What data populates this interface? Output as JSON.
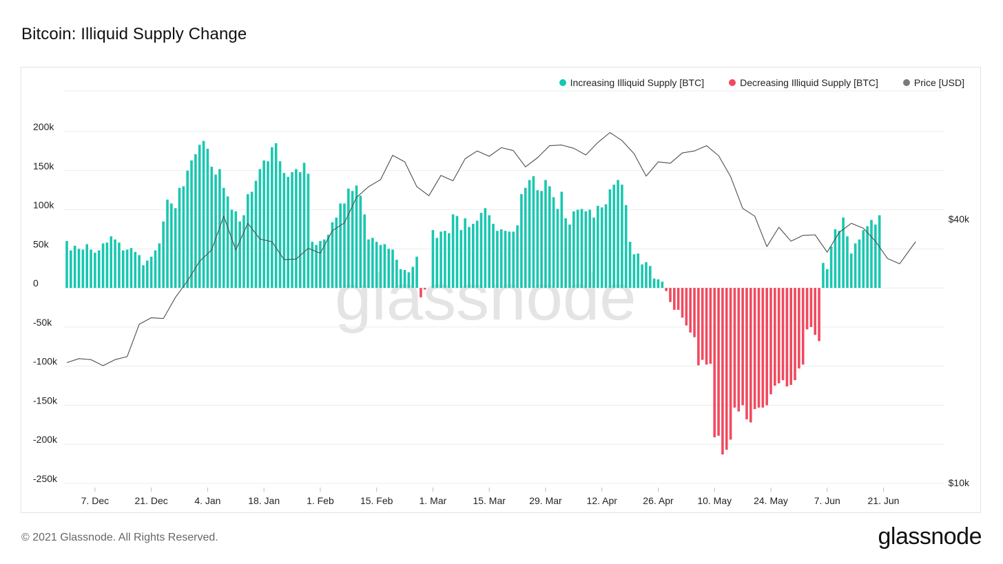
{
  "title": "Bitcoin: Illiquid Supply Change",
  "footer": {
    "copyright": "© 2021 Glassnode. All Rights Reserved.",
    "brand": "glassnode"
  },
  "watermark": "glassnode",
  "colors": {
    "increasing": "#19c7b0",
    "decreasing": "#f04a5f",
    "price": "#4d4d4d",
    "grid": "#ececec"
  },
  "legend": [
    {
      "label": "Increasing Illiquid Supply [BTC]",
      "color": "#19c7b0"
    },
    {
      "label": "Decreasing Illiquid Supply [BTC]",
      "color": "#f04a5f"
    },
    {
      "label": "Price [USD]",
      "color": "#7a7a7a"
    }
  ],
  "chart_data": {
    "type": "bar",
    "title": "Bitcoin: Illiquid Supply Change",
    "y_axis_left": {
      "ticks": [
        "200k",
        "150k",
        "100k",
        "50k",
        "0",
        "-50k",
        "-100k",
        "-150k",
        "-200k",
        "-250k"
      ],
      "range": [
        -250000,
        200000
      ]
    },
    "y_axis_right": {
      "ticks": [
        "$40k",
        "$10k"
      ],
      "scale": "log",
      "range": [
        10000,
        40000
      ]
    },
    "x_axis": {
      "tick_labels": [
        "7. Dec",
        "21. Dec",
        "4. Jan",
        "18. Jan",
        "1. Feb",
        "15. Feb",
        "1. Mar",
        "15. Mar",
        "29. Mar",
        "12. Apr",
        "26. Apr",
        "10. May",
        "24. May",
        "7. Jun",
        "21. Jun"
      ]
    },
    "start_date": "2020-11-30",
    "end_date": "2021-06-29",
    "grid": true,
    "legend_position": "top-right",
    "series": [
      {
        "name": "Illiquid Supply Change [BTC]",
        "values": [
          60000,
          48000,
          54000,
          50000,
          49000,
          56000,
          49000,
          45000,
          48000,
          57000,
          58000,
          66000,
          62000,
          58000,
          48000,
          49000,
          51000,
          46000,
          42000,
          29000,
          35000,
          40000,
          48000,
          57000,
          85000,
          113000,
          108000,
          102000,
          128000,
          130000,
          150000,
          163000,
          171000,
          183000,
          188000,
          178000,
          155000,
          145000,
          152000,
          128000,
          117000,
          100000,
          98000,
          85000,
          93000,
          120000,
          123000,
          137000,
          152000,
          163000,
          162000,
          180000,
          185000,
          162000,
          147000,
          142000,
          148000,
          152000,
          148000,
          160000,
          146000,
          59000,
          55000,
          60000,
          62000,
          68000,
          84000,
          90000,
          108000,
          108000,
          127000,
          124000,
          131000,
          118000,
          94000,
          62000,
          64000,
          59000,
          55000,
          56000,
          50000,
          49000,
          36000,
          24000,
          23000,
          20000,
          27000,
          40000,
          -12000,
          -2000,
          0,
          74000,
          64000,
          72000,
          73000,
          70000,
          94000,
          92000,
          74000,
          89000,
          78000,
          82000,
          86000,
          96000,
          102000,
          93000,
          82000,
          73000,
          75000,
          73000,
          72000,
          72000,
          80000,
          120000,
          128000,
          138000,
          143000,
          125000,
          124000,
          138000,
          130000,
          116000,
          101000,
          123000,
          89000,
          81000,
          98000,
          100000,
          101000,
          98000,
          100000,
          90000,
          105000,
          103000,
          107000,
          126000,
          132000,
          138000,
          132000,
          106000,
          59000,
          43000,
          44000,
          30000,
          33000,
          28000,
          12000,
          11000,
          8000,
          -4000,
          -18000,
          -28000,
          -28000,
          -38000,
          -48000,
          -57000,
          -63000,
          -99000,
          -92000,
          -98000,
          -97000,
          -191000,
          -189000,
          -213000,
          -207000,
          -194000,
          -153000,
          -158000,
          -150000,
          -168000,
          -172000,
          -155000,
          -153000,
          -153000,
          -150000,
          -136000,
          -125000,
          -122000,
          -118000,
          -126000,
          -124000,
          -118000,
          -103000,
          -98000,
          -53000,
          -50000,
          -60000,
          -68000,
          32000,
          24000,
          53000,
          75000,
          73000,
          90000,
          66000,
          44000,
          57000,
          62000,
          74000,
          79000,
          87000,
          81000,
          93000
        ]
      },
      {
        "name": "Price [USD]",
        "x": [
          "2020-11-30",
          "2020-12-03",
          "2020-12-06",
          "2020-12-09",
          "2020-12-12",
          "2020-12-15",
          "2020-12-18",
          "2020-12-21",
          "2020-12-24",
          "2020-12-27",
          "2020-12-30",
          "2021-01-02",
          "2021-01-05",
          "2021-01-08",
          "2021-01-11",
          "2021-01-14",
          "2021-01-17",
          "2021-01-20",
          "2021-01-23",
          "2021-01-26",
          "2021-01-29",
          "2021-02-01",
          "2021-02-04",
          "2021-02-07",
          "2021-02-10",
          "2021-02-13",
          "2021-02-16",
          "2021-02-19",
          "2021-02-22",
          "2021-02-25",
          "2021-02-28",
          "2021-03-03",
          "2021-03-06",
          "2021-03-09",
          "2021-03-12",
          "2021-03-15",
          "2021-03-18",
          "2021-03-21",
          "2021-03-24",
          "2021-03-27",
          "2021-03-30",
          "2021-04-02",
          "2021-04-05",
          "2021-04-08",
          "2021-04-11",
          "2021-04-14",
          "2021-04-17",
          "2021-04-20",
          "2021-04-23",
          "2021-04-26",
          "2021-04-29",
          "2021-05-02",
          "2021-05-05",
          "2021-05-08",
          "2021-05-11",
          "2021-05-14",
          "2021-05-17",
          "2021-05-20",
          "2021-05-23",
          "2021-05-26",
          "2021-05-29",
          "2021-06-01",
          "2021-06-04",
          "2021-06-07",
          "2021-06-10",
          "2021-06-13",
          "2021-06-16",
          "2021-06-19",
          "2021-06-22",
          "2021-06-25",
          "2021-06-29"
        ],
        "values": [
          18800,
          19200,
          19100,
          18500,
          19100,
          19400,
          23000,
          23800,
          23700,
          26500,
          28900,
          32000,
          34000,
          40600,
          34000,
          39100,
          36000,
          35500,
          32300,
          32400,
          34300,
          33400,
          37600,
          39200,
          44800,
          47400,
          49200,
          55900,
          54000,
          47400,
          45200,
          50300,
          48900,
          54900,
          57200,
          55600,
          58200,
          57300,
          52600,
          55200,
          58800,
          59000,
          58000,
          56000,
          59800,
          63000,
          60400,
          56400,
          50100,
          54000,
          53600,
          56600,
          57200,
          58800,
          55800,
          50000,
          42300,
          40600,
          34600,
          38300,
          35600,
          36700,
          36800,
          33600,
          37300,
          39100,
          38100,
          35600,
          32500,
          31600,
          35500
        ]
      }
    ]
  }
}
